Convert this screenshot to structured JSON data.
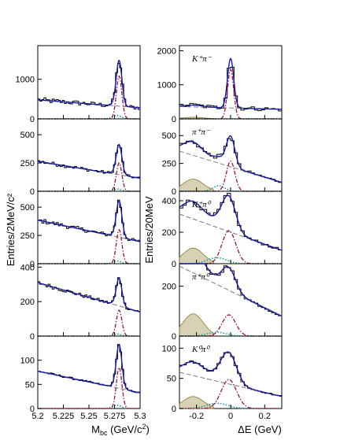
{
  "chart_data": [
    {
      "type": "line",
      "column": "left",
      "xlabel": "M_bc (GeV/c²)",
      "xlim": [
        5.2,
        5.3
      ],
      "xticks": [
        "5.2",
        "5.225",
        "5.25",
        "5.275",
        "5.3"
      ],
      "ylabel": "Entries/2MeV/c²",
      "panels": [
        {
          "panel_label": "",
          "ylim": [
            0,
            1850
          ],
          "yticks": [
            0,
            1000
          ],
          "baseline": 380,
          "slope": -200,
          "peak": 1240,
          "peak_x": 5.2795,
          "sigma": 0.0027,
          "sig_peak": 1080
        },
        {
          "panel_label": "",
          "ylim": [
            0,
            640
          ],
          "yticks": [
            0,
            250,
            500
          ],
          "baseline": 190,
          "slope": -150,
          "peak": 430,
          "peak_x": 5.2795,
          "sigma": 0.0027,
          "sig_peak": 250
        },
        {
          "panel_label": "",
          "ylim": [
            0,
            640
          ],
          "yticks": [
            0,
            250,
            500
          ],
          "baseline": 290,
          "slope": -190,
          "peak": 480,
          "peak_x": 5.2795,
          "sigma": 0.0027,
          "sig_peak": 300
        },
        {
          "panel_label": "",
          "ylim": [
            0,
            420
          ],
          "yticks": [
            0,
            200,
            400
          ],
          "baseline": 225,
          "slope": -170,
          "peak": 280,
          "peak_x": 5.2795,
          "sigma": 0.0027,
          "sig_peak": 150
        },
        {
          "panel_label": "",
          "ylim": [
            0,
            150
          ],
          "yticks": [
            0,
            50,
            100
          ],
          "baseline": 55,
          "slope": -45,
          "peak": 115,
          "peak_x": 5.2795,
          "sigma": 0.0027,
          "sig_peak": 85
        }
      ]
    },
    {
      "type": "line",
      "column": "right",
      "xlabel": "ΔE (GeV)",
      "xlim": [
        -0.3,
        0.3
      ],
      "xticks": [
        "-0.2",
        "0",
        "0.2"
      ],
      "ylabel": "Entries/20MeV",
      "panels": [
        {
          "panel_label": "K⁺π⁻",
          "ylim": [
            0,
            2150
          ],
          "yticks": [
            0,
            1000,
            2000
          ],
          "baseline": 320,
          "slope": -80,
          "peak": 1580,
          "peak_x": 0.0,
          "sigma": 0.018,
          "sig_peak": 1450
        },
        {
          "panel_label": "π⁺π⁻",
          "ylim": [
            0,
            650
          ],
          "yticks": [
            0,
            250,
            500
          ],
          "baseline": 220,
          "slope": -280,
          "peak": 480,
          "peak_x": 0.0,
          "sigma": 0.025,
          "sig_peak": 270
        },
        {
          "panel_label": "K⁺π⁰",
          "ylim": [
            0,
            460
          ],
          "yticks": [
            0,
            200,
            400
          ],
          "baseline": 200,
          "slope": -230,
          "peak": 350,
          "peak_x": -0.01,
          "sigma": 0.04,
          "sig_peak": 210
        },
        {
          "panel_label": "π⁺π⁰",
          "ylim": [
            0,
            290
          ],
          "yticks": [
            0,
            200
          ],
          "baseline": 180,
          "slope": -200,
          "peak": 200,
          "peak_x": -0.01,
          "sigma": 0.04,
          "sig_peak": 85
        },
        {
          "panel_label": "K⁰π⁰",
          "ylim": [
            0,
            120
          ],
          "yticks": [
            0,
            50,
            100
          ],
          "baseline": 40,
          "slope": -40,
          "peak": 75,
          "peak_x": -0.01,
          "sigma": 0.045,
          "sig_peak": 48
        }
      ]
    }
  ],
  "labels": {
    "left_ylabel": "Entries/2MeV/c²",
    "right_ylabel": "Entries/20MeV",
    "left_xlabel_main": "M",
    "left_xlabel_sub": "bc",
    "left_xlabel_unit": " (GeV/c",
    "left_xlabel_sup": "2",
    "left_xlabel_end": ")",
    "right_xlabel": "ΔE (GeV)",
    "left_xticks": [
      "5.2",
      "5.225",
      "5.25",
      "5.275",
      "5.3"
    ],
    "right_xticks": [
      "-0.2",
      "0",
      "0.2"
    ]
  },
  "colors": {
    "histogram": "#000000",
    "total_fit": "#1a1aa8",
    "signal": "#a0103a",
    "background": "#7a7a7a",
    "crossfeed": "#1a9a9a",
    "peaking_bg_fill": "#8b7a2a"
  }
}
